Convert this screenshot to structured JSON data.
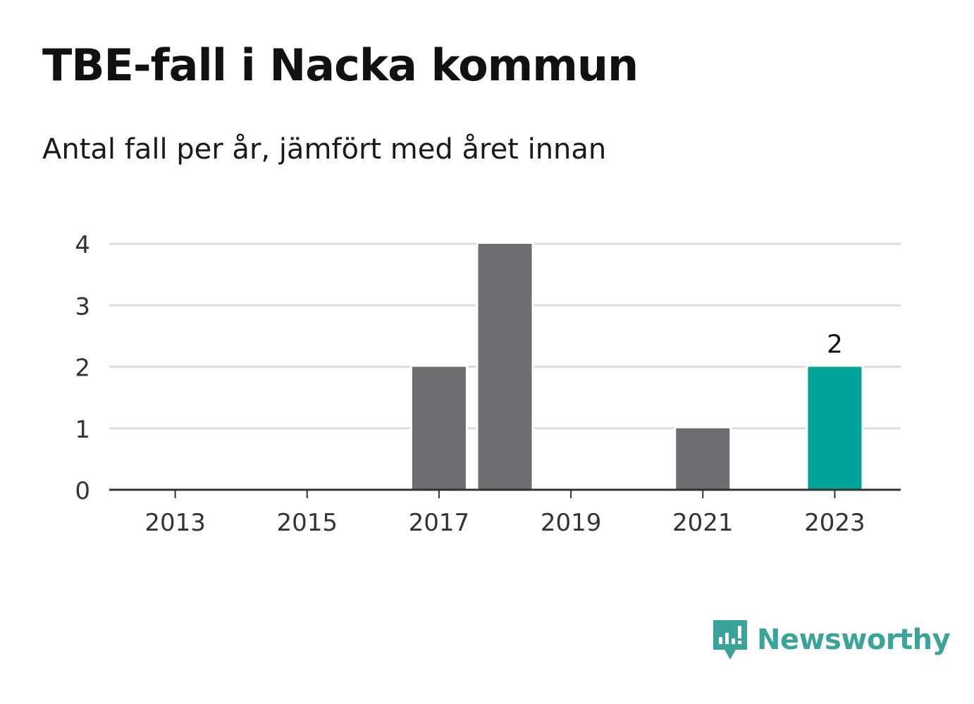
{
  "title": "TBE-fall i Nacka kommun",
  "subtitle": "Antal fall per år, jämfört med året innan",
  "brand": {
    "name": "Newsworthy",
    "color": "#3aa39a",
    "icon": "newsworthy-logo-icon"
  },
  "colors": {
    "bar": "#6e6d72",
    "highlight": "#00a399",
    "grid": "#dddddd",
    "axis": "#333333"
  },
  "chart_data": {
    "type": "bar",
    "x": [
      2013,
      2014,
      2015,
      2016,
      2017,
      2018,
      2019,
      2020,
      2021,
      2022,
      2023
    ],
    "values": [
      0,
      0,
      0,
      0,
      2,
      4,
      0,
      0,
      1,
      0,
      2
    ],
    "xticks": [
      "2013",
      "2015",
      "2017",
      "2019",
      "2021",
      "2023"
    ],
    "yticks": [
      "0",
      "1",
      "2",
      "3",
      "4"
    ],
    "ylim": [
      0,
      4
    ],
    "highlight_index": 10,
    "data_label": "2",
    "grid": true
  }
}
